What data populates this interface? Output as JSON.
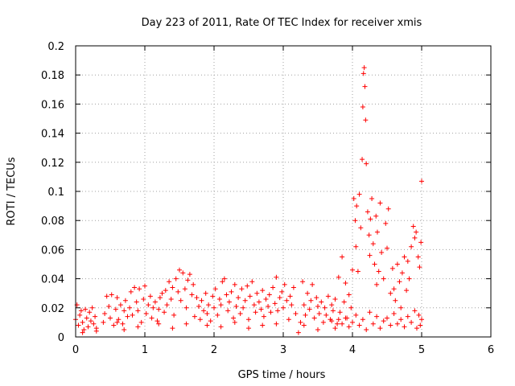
{
  "chart_data": {
    "type": "scatter",
    "title": "Day 223 of 2011, Rate Of TEC Index for receiver xmis",
    "xlabel": "GPS time / hours",
    "ylabel": "ROTI / TECUs",
    "xlim": [
      0,
      6
    ],
    "ylim": [
      0,
      0.2
    ],
    "xticks": [
      0,
      1,
      2,
      3,
      4,
      5,
      6
    ],
    "yticks": [
      0,
      0.02,
      0.04,
      0.06,
      0.08,
      0.1,
      0.12,
      0.14,
      0.16,
      0.18,
      0.2
    ],
    "xtick_labels": [
      "0",
      "1",
      "2",
      "3",
      "4",
      "5",
      "6"
    ],
    "ytick_labels": [
      "0",
      "0.02",
      "0.04",
      "0.06",
      "0.08",
      "0.1",
      "0.12",
      "0.14",
      "0.16",
      "0.18",
      "0.2"
    ],
    "grid": true,
    "marker": "+",
    "color": "#ff0000",
    "series": [
      {
        "name": "ROTI",
        "points": [
          [
            0.0,
            0.012
          ],
          [
            0.02,
            0.022
          ],
          [
            0.04,
            0.008
          ],
          [
            0.06,
            0.015
          ],
          [
            0.08,
            0.018
          ],
          [
            0.1,
            0.01
          ],
          [
            0.12,
            0.005
          ],
          [
            0.14,
            0.019
          ],
          [
            0.16,
            0.013
          ],
          [
            0.18,
            0.007
          ],
          [
            0.2,
            0.017
          ],
          [
            0.22,
            0.011
          ],
          [
            0.24,
            0.02
          ],
          [
            0.26,
            0.009
          ],
          [
            0.28,
            0.014
          ],
          [
            0.3,
            0.006
          ],
          [
            0.4,
            0.01
          ],
          [
            0.42,
            0.016
          ],
          [
            0.45,
            0.028
          ],
          [
            0.48,
            0.021
          ],
          [
            0.5,
            0.013
          ],
          [
            0.52,
            0.029
          ],
          [
            0.55,
            0.008
          ],
          [
            0.58,
            0.019
          ],
          [
            0.6,
            0.027
          ],
          [
            0.62,
            0.012
          ],
          [
            0.65,
            0.022
          ],
          [
            0.68,
            0.009
          ],
          [
            0.7,
            0.018
          ],
          [
            0.72,
            0.025
          ],
          [
            0.75,
            0.014
          ],
          [
            0.78,
            0.02
          ],
          [
            0.8,
            0.031
          ],
          [
            0.82,
            0.015
          ],
          [
            0.85,
            0.034
          ],
          [
            0.88,
            0.024
          ],
          [
            0.9,
            0.018
          ],
          [
            0.92,
            0.033
          ],
          [
            0.95,
            0.01
          ],
          [
            0.98,
            0.026
          ],
          [
            1.0,
            0.035
          ],
          [
            1.02,
            0.016
          ],
          [
            1.05,
            0.022
          ],
          [
            1.08,
            0.028
          ],
          [
            1.1,
            0.013
          ],
          [
            1.12,
            0.02
          ],
          [
            1.15,
            0.024
          ],
          [
            1.18,
            0.011
          ],
          [
            1.2,
            0.019
          ],
          [
            1.22,
            0.027
          ],
          [
            1.25,
            0.03
          ],
          [
            1.28,
            0.017
          ],
          [
            1.3,
            0.032
          ],
          [
            1.32,
            0.022
          ],
          [
            1.35,
            0.038
          ],
          [
            1.38,
            0.026
          ],
          [
            1.4,
            0.034
          ],
          [
            1.42,
            0.015
          ],
          [
            1.45,
            0.04
          ],
          [
            1.48,
            0.031
          ],
          [
            1.5,
            0.046
          ],
          [
            1.52,
            0.025
          ],
          [
            1.55,
            0.044
          ],
          [
            1.58,
            0.033
          ],
          [
            1.6,
            0.02
          ],
          [
            1.62,
            0.039
          ],
          [
            1.65,
            0.043
          ],
          [
            1.68,
            0.029
          ],
          [
            1.7,
            0.036
          ],
          [
            1.72,
            0.014
          ],
          [
            1.75,
            0.027
          ],
          [
            1.78,
            0.021
          ],
          [
            1.8,
            0.012
          ],
          [
            1.82,
            0.025
          ],
          [
            1.85,
            0.018
          ],
          [
            1.88,
            0.03
          ],
          [
            1.9,
            0.016
          ],
          [
            1.92,
            0.022
          ],
          [
            1.95,
            0.011
          ],
          [
            1.98,
            0.028
          ],
          [
            2.0,
            0.02
          ],
          [
            2.02,
            0.033
          ],
          [
            2.05,
            0.015
          ],
          [
            2.08,
            0.026
          ],
          [
            2.1,
            0.022
          ],
          [
            2.12,
            0.038
          ],
          [
            2.15,
            0.04
          ],
          [
            2.18,
            0.029
          ],
          [
            2.2,
            0.018
          ],
          [
            2.22,
            0.024
          ],
          [
            2.25,
            0.031
          ],
          [
            2.28,
            0.013
          ],
          [
            2.3,
            0.036
          ],
          [
            2.32,
            0.021
          ],
          [
            2.35,
            0.027
          ],
          [
            2.38,
            0.016
          ],
          [
            2.4,
            0.033
          ],
          [
            2.42,
            0.02
          ],
          [
            2.45,
            0.025
          ],
          [
            2.48,
            0.035
          ],
          [
            2.5,
            0.012
          ],
          [
            2.52,
            0.028
          ],
          [
            2.55,
            0.038
          ],
          [
            2.58,
            0.022
          ],
          [
            2.6,
            0.017
          ],
          [
            2.62,
            0.03
          ],
          [
            2.65,
            0.024
          ],
          [
            2.68,
            0.019
          ],
          [
            2.7,
            0.032
          ],
          [
            2.72,
            0.014
          ],
          [
            2.75,
            0.026
          ],
          [
            2.78,
            0.021
          ],
          [
            2.8,
            0.029
          ],
          [
            2.82,
            0.017
          ],
          [
            2.85,
            0.034
          ],
          [
            2.88,
            0.023
          ],
          [
            2.9,
            0.041
          ],
          [
            2.92,
            0.018
          ],
          [
            2.95,
            0.027
          ],
          [
            2.98,
            0.031
          ],
          [
            3.0,
            0.02
          ],
          [
            3.02,
            0.036
          ],
          [
            3.05,
            0.025
          ],
          [
            3.08,
            0.012
          ],
          [
            3.1,
            0.028
          ],
          [
            3.12,
            0.022
          ],
          [
            3.15,
            0.034
          ],
          [
            3.18,
            0.016
          ],
          [
            3.22,
            0.003
          ],
          [
            3.25,
            0.01
          ],
          [
            3.28,
            0.038
          ],
          [
            3.3,
            0.022
          ],
          [
            3.32,
            0.015
          ],
          [
            3.35,
            0.03
          ],
          [
            3.38,
            0.019
          ],
          [
            3.4,
            0.025
          ],
          [
            3.42,
            0.036
          ],
          [
            3.45,
            0.013
          ],
          [
            3.48,
            0.027
          ],
          [
            3.5,
            0.021
          ],
          [
            3.52,
            0.016
          ],
          [
            3.55,
            0.024
          ],
          [
            3.58,
            0.01
          ],
          [
            3.6,
            0.02
          ],
          [
            3.62,
            0.015
          ],
          [
            3.65,
            0.028
          ],
          [
            3.68,
            0.012
          ],
          [
            3.7,
            0.022
          ],
          [
            3.72,
            0.018
          ],
          [
            3.75,
            0.026
          ],
          [
            3.78,
            0.009
          ],
          [
            3.8,
            0.041
          ],
          [
            3.82,
            0.017
          ],
          [
            3.85,
            0.055
          ],
          [
            3.88,
            0.024
          ],
          [
            3.9,
            0.037
          ],
          [
            3.92,
            0.013
          ],
          [
            3.95,
            0.029
          ],
          [
            3.98,
            0.02
          ],
          [
            4.0,
            0.046
          ],
          [
            4.02,
            0.095
          ],
          [
            4.04,
            0.08
          ],
          [
            4.05,
            0.062
          ],
          [
            4.06,
            0.09
          ],
          [
            4.08,
            0.045
          ],
          [
            4.1,
            0.098
          ],
          [
            4.12,
            0.075
          ],
          [
            4.14,
            0.122
          ],
          [
            4.15,
            0.158
          ],
          [
            4.16,
            0.181
          ],
          [
            4.17,
            0.185
          ],
          [
            4.18,
            0.172
          ],
          [
            4.19,
            0.149
          ],
          [
            4.2,
            0.119
          ],
          [
            4.22,
            0.086
          ],
          [
            4.24,
            0.07
          ],
          [
            4.25,
            0.056
          ],
          [
            4.26,
            0.081
          ],
          [
            4.28,
            0.095
          ],
          [
            4.3,
            0.064
          ],
          [
            4.32,
            0.05
          ],
          [
            4.34,
            0.083
          ],
          [
            4.35,
            0.036
          ],
          [
            4.36,
            0.072
          ],
          [
            4.38,
            0.045
          ],
          [
            4.4,
            0.092
          ],
          [
            4.42,
            0.058
          ],
          [
            4.45,
            0.04
          ],
          [
            4.48,
            0.078
          ],
          [
            4.5,
            0.061
          ],
          [
            4.52,
            0.088
          ],
          [
            4.55,
            0.03
          ],
          [
            4.58,
            0.047
          ],
          [
            4.6,
            0.033
          ],
          [
            4.62,
            0.025
          ],
          [
            4.65,
            0.05
          ],
          [
            4.68,
            0.038
          ],
          [
            4.7,
            0.02
          ],
          [
            4.72,
            0.044
          ],
          [
            4.75,
            0.055
          ],
          [
            4.78,
            0.032
          ],
          [
            4.8,
            0.052
          ],
          [
            4.82,
            0.04
          ],
          [
            4.85,
            0.062
          ],
          [
            4.88,
            0.076
          ],
          [
            4.9,
            0.068
          ],
          [
            4.92,
            0.072
          ],
          [
            4.95,
            0.055
          ],
          [
            4.97,
            0.048
          ],
          [
            4.99,
            0.065
          ],
          [
            5.0,
            0.107
          ],
          [
            5.0,
            0.012
          ],
          [
            4.98,
            0.008
          ],
          [
            4.96,
            0.015
          ],
          [
            4.93,
            0.006
          ],
          [
            4.9,
            0.018
          ],
          [
            4.85,
            0.01
          ],
          [
            4.8,
            0.014
          ],
          [
            4.75,
            0.007
          ],
          [
            4.7,
            0.012
          ],
          [
            4.65,
            0.009
          ],
          [
            4.6,
            0.016
          ],
          [
            4.55,
            0.008
          ],
          [
            4.5,
            0.013
          ],
          [
            4.45,
            0.011
          ],
          [
            4.4,
            0.006
          ],
          [
            4.35,
            0.014
          ],
          [
            4.3,
            0.009
          ],
          [
            4.25,
            0.017
          ],
          [
            4.2,
            0.005
          ],
          [
            4.15,
            0.012
          ],
          [
            4.1,
            0.008
          ],
          [
            4.05,
            0.015
          ],
          [
            4.0,
            0.01
          ],
          [
            3.95,
            0.007
          ],
          [
            3.9,
            0.013
          ],
          [
            3.85,
            0.009
          ],
          [
            3.8,
            0.012
          ],
          [
            3.75,
            0.006
          ],
          [
            3.7,
            0.011
          ],
          [
            2.5,
            0.006
          ],
          [
            2.7,
            0.008
          ],
          [
            1.4,
            0.006
          ],
          [
            1.6,
            0.009
          ],
          [
            0.9,
            0.007
          ],
          [
            0.7,
            0.005
          ],
          [
            2.1,
            0.007
          ],
          [
            2.9,
            0.009
          ],
          [
            3.3,
            0.008
          ],
          [
            3.5,
            0.005
          ],
          [
            1.9,
            0.008
          ],
          [
            1.2,
            0.009
          ],
          [
            0.6,
            0.01
          ],
          [
            0.3,
            0.004
          ],
          [
            0.1,
            0.003
          ],
          [
            2.3,
            0.01
          ]
        ]
      }
    ]
  }
}
